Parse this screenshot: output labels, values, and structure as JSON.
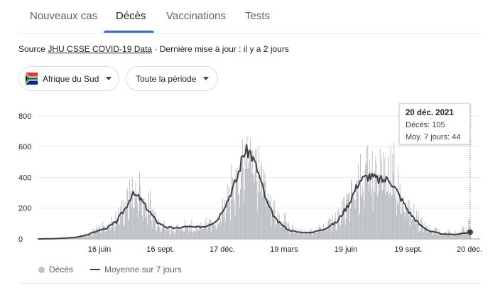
{
  "tabs": [
    {
      "label": "Nouveaux cas"
    },
    {
      "label": "Décès"
    },
    {
      "label": "Vaccinations"
    },
    {
      "label": "Tests"
    }
  ],
  "source": {
    "prefix": "Source",
    "link": "JHU CSSE COVID-19 Data",
    "updated": "· Dernière mise à jour : il y a 2 jours"
  },
  "filters": {
    "country": "Afrique du Sud",
    "period": "Toute la période"
  },
  "colors": {
    "accent": "#1a73e8",
    "bars": "#bdc1c6",
    "line": "#3c4043",
    "grid": "#e8eaed"
  },
  "tooltip": {
    "date": "20 déc. 2021",
    "deaths": "Décès: 105",
    "avg": "Moy. 7 jours: 44"
  },
  "legend": {
    "bars": "Décès",
    "line": "Moyenne sur 7 jours"
  },
  "chart_data": {
    "type": "bar",
    "title": "",
    "ylim": [
      0,
      850
    ],
    "yticks": [
      0,
      200,
      400,
      600,
      800
    ],
    "xticks": [
      "16 juin",
      "16 sept.",
      "17 déc.",
      "19 mars",
      "19 juin",
      "19 sept.",
      "20 déc."
    ],
    "grid": true,
    "x_range": [
      "2020-03-05",
      "2021-12-20"
    ],
    "series": [
      {
        "name": "Décès",
        "kind": "bar",
        "weekly_points": [
          [
            "2020-03-05",
            0
          ],
          [
            "2020-04-01",
            3
          ],
          [
            "2020-05-01",
            15
          ],
          [
            "2020-05-20",
            40
          ],
          [
            "2020-06-01",
            60
          ],
          [
            "2020-06-16",
            90
          ],
          [
            "2020-07-01",
            150
          ],
          [
            "2020-07-15",
            250
          ],
          [
            "2020-07-25",
            340
          ],
          [
            "2020-08-05",
            300
          ],
          [
            "2020-08-20",
            230
          ],
          [
            "2020-09-01",
            140
          ],
          [
            "2020-09-16",
            80
          ],
          [
            "2020-10-01",
            75
          ],
          [
            "2020-10-15",
            90
          ],
          [
            "2020-11-01",
            80
          ],
          [
            "2020-11-15",
            100
          ],
          [
            "2020-12-01",
            140
          ],
          [
            "2020-12-17",
            290
          ],
          [
            "2021-01-01",
            420
          ],
          [
            "2021-01-10",
            620
          ],
          [
            "2021-01-20",
            660
          ],
          [
            "2021-02-01",
            520
          ],
          [
            "2021-02-15",
            300
          ],
          [
            "2021-03-01",
            170
          ],
          [
            "2021-03-19",
            90
          ],
          [
            "2021-04-01",
            55
          ],
          [
            "2021-04-20",
            50
          ],
          [
            "2021-05-10",
            80
          ],
          [
            "2021-06-01",
            150
          ],
          [
            "2021-06-19",
            270
          ],
          [
            "2021-07-05",
            430
          ],
          [
            "2021-07-20",
            480
          ],
          [
            "2021-08-05",
            460
          ],
          [
            "2021-08-20",
            470
          ],
          [
            "2021-09-01",
            390
          ],
          [
            "2021-09-19",
            220
          ],
          [
            "2021-10-05",
            120
          ],
          [
            "2021-10-20",
            70
          ],
          [
            "2021-11-10",
            40
          ],
          [
            "2021-12-01",
            45
          ],
          [
            "2021-12-20",
            105
          ]
        ]
      },
      {
        "name": "Moyenne sur 7 jours",
        "kind": "line",
        "points": [
          [
            "2020-03-05",
            0
          ],
          [
            "2020-04-01",
            2
          ],
          [
            "2020-05-01",
            10
          ],
          [
            "2020-05-20",
            30
          ],
          [
            "2020-06-01",
            50
          ],
          [
            "2020-06-16",
            70
          ],
          [
            "2020-07-01",
            110
          ],
          [
            "2020-07-15",
            200
          ],
          [
            "2020-07-25",
            290
          ],
          [
            "2020-08-05",
            270
          ],
          [
            "2020-08-20",
            180
          ],
          [
            "2020-09-01",
            110
          ],
          [
            "2020-09-16",
            75
          ],
          [
            "2020-10-01",
            70
          ],
          [
            "2020-10-15",
            80
          ],
          [
            "2020-11-01",
            75
          ],
          [
            "2020-11-15",
            85
          ],
          [
            "2020-12-01",
            120
          ],
          [
            "2020-12-17",
            250
          ],
          [
            "2021-01-01",
            400
          ],
          [
            "2021-01-10",
            560
          ],
          [
            "2021-01-20",
            570
          ],
          [
            "2021-02-01",
            440
          ],
          [
            "2021-02-15",
            230
          ],
          [
            "2021-03-01",
            120
          ],
          [
            "2021-03-19",
            60
          ],
          [
            "2021-04-01",
            45
          ],
          [
            "2021-04-20",
            40
          ],
          [
            "2021-05-10",
            60
          ],
          [
            "2021-06-01",
            110
          ],
          [
            "2021-06-19",
            230
          ],
          [
            "2021-07-05",
            380
          ],
          [
            "2021-07-20",
            410
          ],
          [
            "2021-08-05",
            380
          ],
          [
            "2021-08-20",
            390
          ],
          [
            "2021-09-01",
            300
          ],
          [
            "2021-09-19",
            170
          ],
          [
            "2021-10-05",
            90
          ],
          [
            "2021-10-20",
            50
          ],
          [
            "2021-11-10",
            30
          ],
          [
            "2021-12-01",
            30
          ],
          [
            "2021-12-20",
            44
          ]
        ]
      }
    ]
  }
}
